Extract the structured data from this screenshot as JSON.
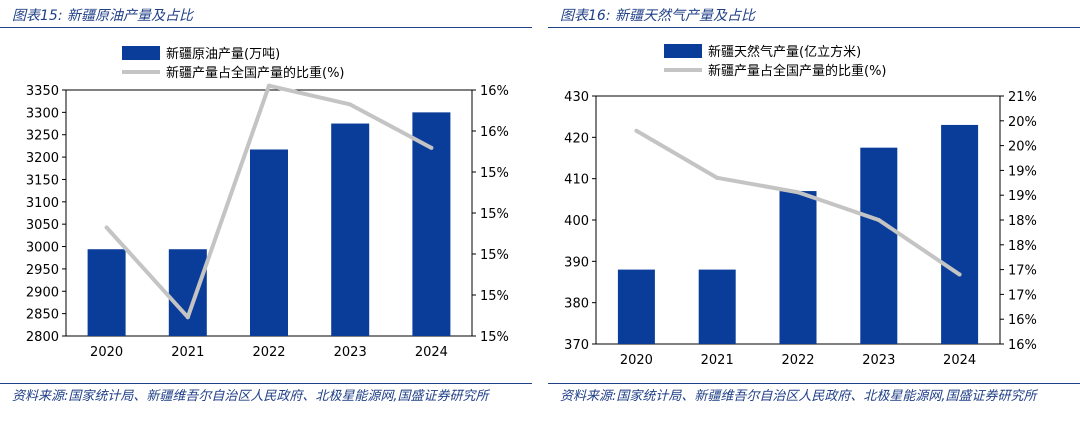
{
  "colors": {
    "bar": "#0a3d9a",
    "line": "#c4c4c4",
    "accent": "#1f3f87"
  },
  "left": {
    "title": "图表15:  新疆原油产量及占比",
    "source": "资料来源:国家统计局、新疆维吾尔自治区人民政府、北极星能源网,国盛证券研究所",
    "chart_data": {
      "type": "bar+line",
      "categories": [
        "2020",
        "2021",
        "2022",
        "2023",
        "2024"
      ],
      "series": [
        {
          "name": "新疆原油产量(万吨)",
          "type": "bar",
          "axis": "left",
          "values": [
            2994,
            2994,
            3217,
            3275,
            3300
          ]
        },
        {
          "name": "新疆产量占全国产量的比重(%)",
          "type": "line",
          "axis": "right",
          "values": [
            15.25,
            14.63,
            16.23,
            16.1,
            15.8
          ]
        }
      ],
      "ylim": [
        2800,
        3350
      ],
      "yticks": [
        "2800",
        "2850",
        "2900",
        "2950",
        "3000",
        "3050",
        "3100",
        "3150",
        "3200",
        "3250",
        "3300",
        "3350"
      ],
      "y2lim": [
        14.5,
        16.2
      ],
      "y2ticks": [
        "15%",
        "15%",
        "15%",
        "15%",
        "15%",
        "16%",
        "16%"
      ],
      "legend": "top-center"
    }
  },
  "right": {
    "title": "图表16:  新疆天然气产量及占比",
    "source": "资料来源:国家统计局、新疆维吾尔自治区人民政府、北极星能源网,国盛证券研究所",
    "chart_data": {
      "type": "bar+line",
      "categories": [
        "2020",
        "2021",
        "2022",
        "2023",
        "2024"
      ],
      "series": [
        {
          "name": "新疆天然气产量(亿立方米)",
          "type": "bar",
          "axis": "left",
          "values": [
            388,
            388,
            407,
            417.5,
            423
          ]
        },
        {
          "name": "新疆产量占全国产量的比重(%)",
          "type": "line",
          "axis": "right",
          "values": [
            20.3,
            19.35,
            19.06,
            18.5,
            17.4
          ]
        }
      ],
      "ylim": [
        370,
        430
      ],
      "yticks": [
        "370",
        "380",
        "390",
        "400",
        "410",
        "420",
        "430"
      ],
      "y2lim": [
        16,
        21
      ],
      "y2ticks": [
        "16%",
        "16%",
        "17%",
        "17%",
        "18%",
        "18%",
        "19%",
        "19%",
        "20%",
        "20%",
        "21%"
      ],
      "legend": "top-center"
    }
  }
}
